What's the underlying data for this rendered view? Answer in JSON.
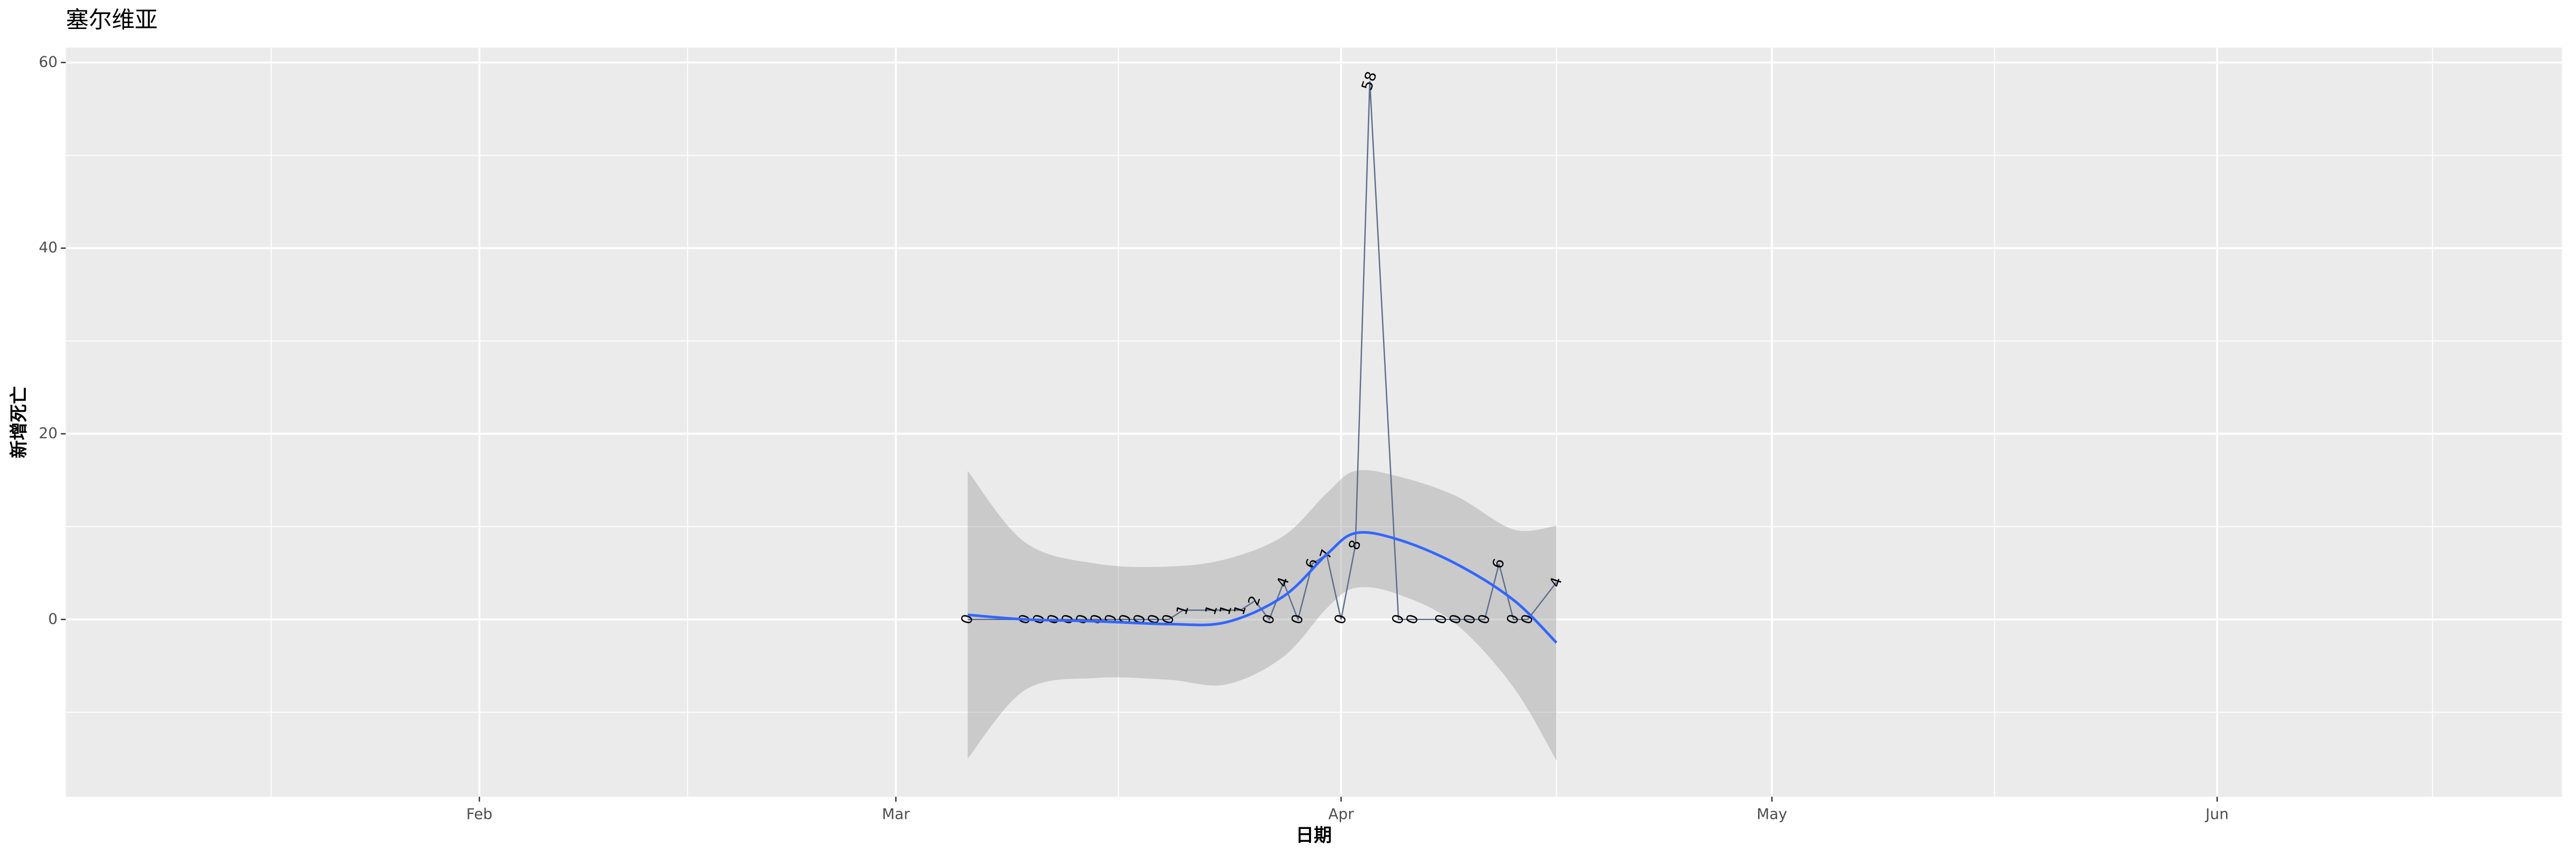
{
  "chart_data": {
    "type": "line",
    "title": "塞尔维亚",
    "xlabel": "日期",
    "ylabel": "新增死亡",
    "x": [
      66,
      70,
      71,
      72,
      73,
      74,
      75,
      76,
      77,
      78,
      79,
      80,
      81,
      83,
      84,
      85,
      86,
      87,
      88,
      89,
      90,
      91,
      92,
      93,
      94,
      96,
      97,
      99,
      100,
      101,
      102,
      103,
      104,
      105,
      107
    ],
    "series": [
      {
        "color": "#5d6d8c",
        "values": [
          0,
          0,
          0,
          0,
          0,
          0,
          0,
          0,
          0,
          0,
          0,
          0,
          1,
          1,
          1,
          1,
          2,
          0,
          4,
          0,
          6,
          7,
          0,
          8,
          58,
          0,
          0,
          0,
          0,
          0,
          0,
          6,
          0,
          0,
          4
        ]
      }
    ],
    "smooth": {
      "color": "#3366ff",
      "band_color": "#999999",
      "x": [
        66,
        70,
        75,
        80,
        84,
        88,
        91,
        93,
        96,
        100,
        104,
        107
      ],
      "values": [
        0.5,
        0,
        -0.2,
        -0.5,
        -0.3,
        2.5,
        7,
        9.3,
        8.6,
        6,
        2.1,
        -2.5
      ],
      "lower": [
        -15,
        -7.6,
        -6.3,
        -6.5,
        -7,
        -4,
        1.2,
        3.4,
        2.7,
        -0.5,
        -7.3,
        -15.2
      ],
      "upper": [
        16,
        8.3,
        6,
        5.7,
        6.5,
        9,
        13.6,
        16,
        15.4,
        13.3,
        9.7,
        10.1
      ]
    },
    "xlim": [
      3.2,
      177
    ],
    "ylim": [
      -19.1,
      61.6
    ],
    "xticks": [
      {
        "value": 32,
        "label": "Feb"
      },
      {
        "value": 61,
        "label": "Mar"
      },
      {
        "value": 92,
        "label": "Apr"
      },
      {
        "value": 122,
        "label": "May"
      },
      {
        "value": 153,
        "label": "Jun"
      }
    ],
    "yticks": [
      0,
      20,
      40,
      60
    ],
    "xminor": [
      17.5,
      46.5,
      76.5,
      107,
      137.5,
      168
    ],
    "yminor": [
      -10,
      10,
      30,
      50
    ],
    "grid": true,
    "panel_color": "#ebebeb"
  }
}
